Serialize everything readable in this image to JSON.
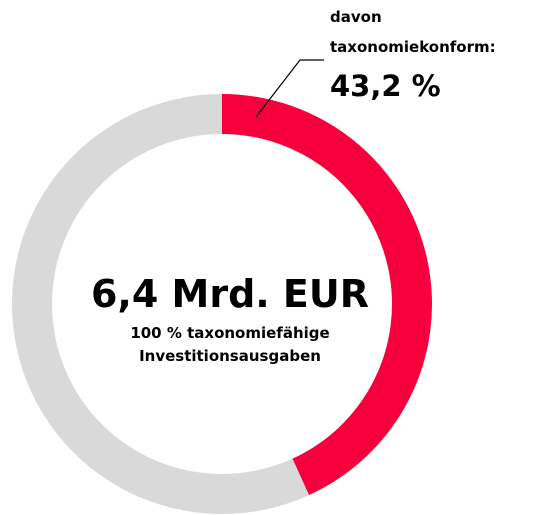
{
  "chart_data": {
    "type": "donut",
    "values": [
      43.2,
      56.8
    ],
    "value_labels": [
      "43,2 %",
      null
    ],
    "colors": [
      "#f5003d",
      "#d9d9d9"
    ],
    "annotation": [
      "davon",
      "taxonomiekonform:"
    ],
    "center_title": "6,4 Mrd. EUR",
    "center_subtitle": [
      "100 % taxonomiefähige",
      "Investitionsausgaben"
    ]
  }
}
